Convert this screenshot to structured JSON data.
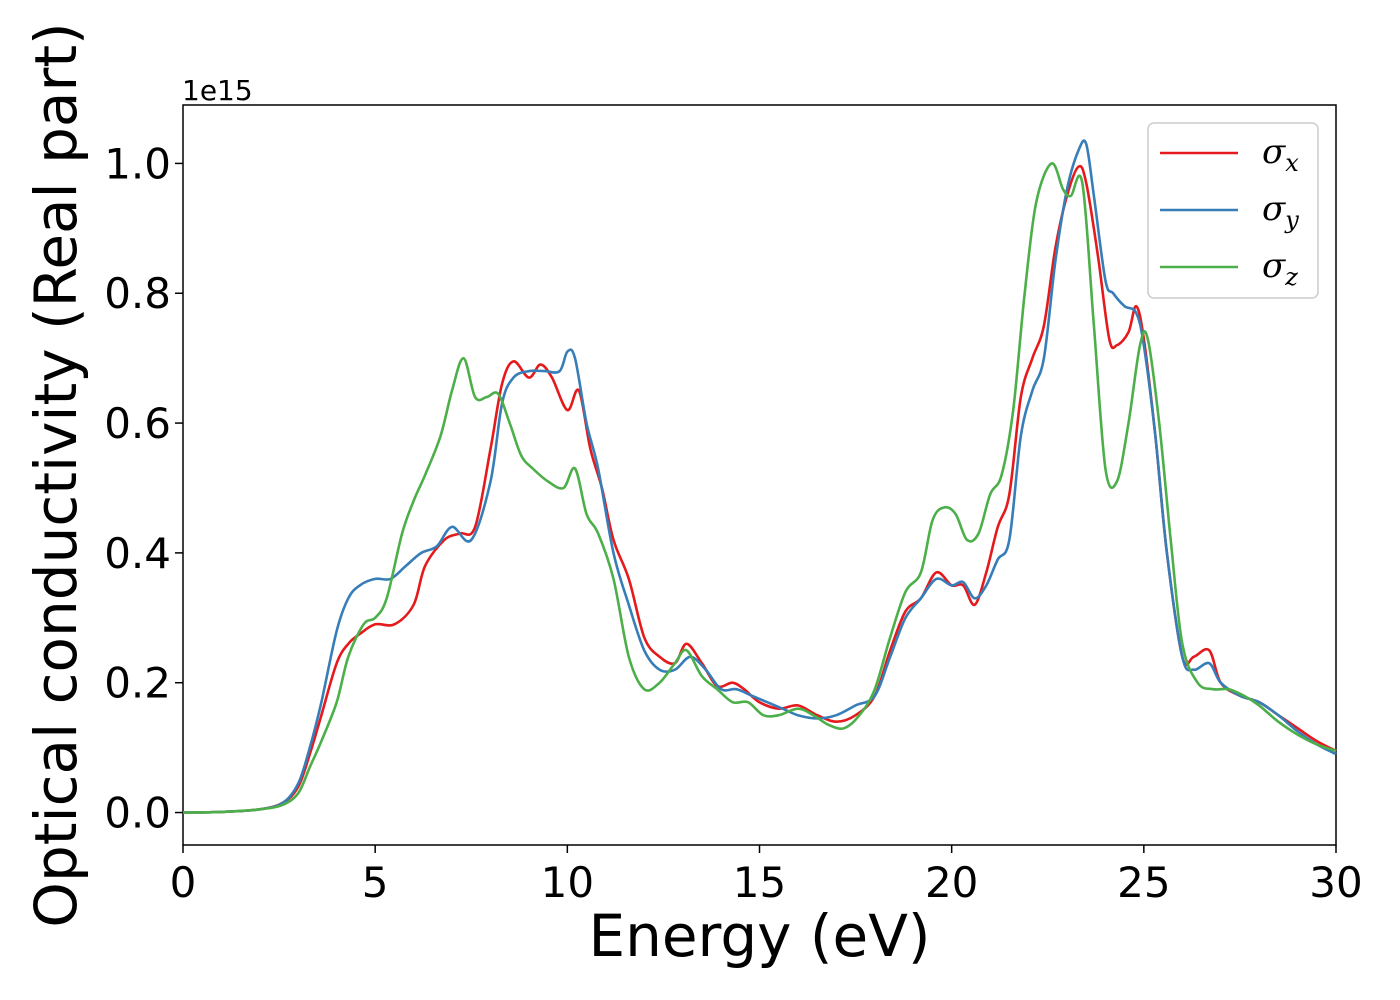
{
  "chart_data": {
    "type": "line",
    "xlabel": "Energy (eV)",
    "ylabel": "Optical conductivity (Real part)",
    "y_offset_text": "1e15",
    "xlim": [
      0,
      30
    ],
    "ylim": [
      -0.05,
      1.09
    ],
    "xticks": [
      0,
      5,
      10,
      15,
      20,
      25,
      30
    ],
    "xtick_labels": [
      "0",
      "5",
      "10",
      "15",
      "20",
      "25",
      "30"
    ],
    "yticks": [
      0.0,
      0.2,
      0.4,
      0.6,
      0.8,
      1.0
    ],
    "ytick_labels": [
      "0.0",
      "0.2",
      "0.4",
      "0.6",
      "0.8",
      "1.0"
    ],
    "grid": false,
    "legend_position": "top-right",
    "series": [
      {
        "name": "σx",
        "symbol": "σ",
        "subscript": "x",
        "color": "#e41a1c",
        "x": [
          0,
          1,
          2,
          2.6,
          3.0,
          3.3,
          3.6,
          4.0,
          4.3,
          4.6,
          5.0,
          5.5,
          6.0,
          6.3,
          6.8,
          7.2,
          7.6,
          8.0,
          8.3,
          8.6,
          9.0,
          9.3,
          9.6,
          10.0,
          10.3,
          10.6,
          10.9,
          11.2,
          11.6,
          12.0,
          12.4,
          12.8,
          13.1,
          13.5,
          13.9,
          14.3,
          14.6,
          15.0,
          15.5,
          16.0,
          16.5,
          17.0,
          17.5,
          18.0,
          18.4,
          18.8,
          19.2,
          19.6,
          20.0,
          20.3,
          20.6,
          20.9,
          21.2,
          21.5,
          21.8,
          22.1,
          22.4,
          22.7,
          23.0,
          23.3,
          23.5,
          23.8,
          24.1,
          24.3,
          24.6,
          24.8,
          25.0,
          25.3,
          25.6,
          26.0,
          26.3,
          26.7,
          27.0,
          27.5,
          28.0,
          28.5,
          29.0,
          29.5,
          30.0
        ],
        "y": [
          0,
          0.001,
          0.005,
          0.015,
          0.04,
          0.09,
          0.15,
          0.23,
          0.26,
          0.275,
          0.29,
          0.29,
          0.32,
          0.38,
          0.42,
          0.43,
          0.44,
          0.56,
          0.66,
          0.695,
          0.67,
          0.69,
          0.67,
          0.62,
          0.65,
          0.56,
          0.5,
          0.42,
          0.36,
          0.27,
          0.24,
          0.23,
          0.26,
          0.23,
          0.195,
          0.2,
          0.19,
          0.17,
          0.16,
          0.165,
          0.15,
          0.14,
          0.15,
          0.18,
          0.25,
          0.31,
          0.33,
          0.37,
          0.35,
          0.35,
          0.32,
          0.37,
          0.44,
          0.49,
          0.64,
          0.7,
          0.75,
          0.87,
          0.95,
          0.995,
          0.97,
          0.86,
          0.73,
          0.72,
          0.74,
          0.78,
          0.73,
          0.58,
          0.4,
          0.24,
          0.24,
          0.25,
          0.2,
          0.18,
          0.17,
          0.15,
          0.13,
          0.11,
          0.095
        ]
      },
      {
        "name": "σy",
        "symbol": "σ",
        "subscript": "y",
        "color": "#377eb8",
        "x": [
          0,
          1,
          2,
          2.6,
          3.0,
          3.3,
          3.6,
          4.0,
          4.3,
          4.6,
          5.0,
          5.4,
          5.8,
          6.2,
          6.6,
          7.0,
          7.5,
          8.0,
          8.3,
          8.6,
          9.0,
          9.4,
          9.8,
          10.0,
          10.2,
          10.5,
          10.8,
          11.2,
          11.6,
          12.0,
          12.4,
          12.8,
          13.2,
          13.6,
          14.0,
          14.4,
          14.8,
          15.2,
          15.6,
          16.0,
          16.5,
          17.0,
          17.5,
          18.0,
          18.4,
          18.8,
          19.2,
          19.6,
          20.0,
          20.3,
          20.6,
          20.9,
          21.2,
          21.5,
          21.8,
          22.1,
          22.4,
          22.7,
          23.0,
          23.3,
          23.5,
          23.7,
          24.0,
          24.2,
          24.5,
          24.8,
          25.0,
          25.3,
          25.6,
          26.0,
          26.3,
          26.7,
          27.0,
          27.5,
          28.0,
          28.5,
          29.0,
          29.5,
          30.0
        ],
        "y": [
          0,
          0.001,
          0.005,
          0.015,
          0.045,
          0.1,
          0.17,
          0.28,
          0.33,
          0.35,
          0.36,
          0.36,
          0.38,
          0.4,
          0.41,
          0.44,
          0.42,
          0.51,
          0.63,
          0.67,
          0.68,
          0.68,
          0.68,
          0.71,
          0.7,
          0.6,
          0.53,
          0.4,
          0.32,
          0.25,
          0.22,
          0.22,
          0.24,
          0.22,
          0.19,
          0.19,
          0.18,
          0.17,
          0.16,
          0.15,
          0.145,
          0.15,
          0.165,
          0.18,
          0.24,
          0.3,
          0.33,
          0.36,
          0.35,
          0.355,
          0.33,
          0.35,
          0.39,
          0.42,
          0.58,
          0.65,
          0.7,
          0.85,
          0.96,
          1.02,
          1.03,
          0.95,
          0.82,
          0.8,
          0.78,
          0.77,
          0.72,
          0.58,
          0.4,
          0.24,
          0.22,
          0.23,
          0.2,
          0.18,
          0.17,
          0.15,
          0.125,
          0.105,
          0.09
        ]
      },
      {
        "name": "σz",
        "symbol": "σ",
        "subscript": "z",
        "color": "#4daf4a",
        "x": [
          0,
          1,
          2,
          2.6,
          3.0,
          3.3,
          3.6,
          4.0,
          4.3,
          4.7,
          5.0,
          5.3,
          5.7,
          6.0,
          6.3,
          6.7,
          7.0,
          7.3,
          7.6,
          7.9,
          8.2,
          8.5,
          8.8,
          9.1,
          9.5,
          9.9,
          10.2,
          10.5,
          10.8,
          11.2,
          11.6,
          12.0,
          12.4,
          12.8,
          13.1,
          13.5,
          13.9,
          14.3,
          14.7,
          15.1,
          15.5,
          16.0,
          16.4,
          16.8,
          17.2,
          17.6,
          18.0,
          18.4,
          18.8,
          19.2,
          19.5,
          19.8,
          20.1,
          20.4,
          20.7,
          21.0,
          21.3,
          21.6,
          21.9,
          22.2,
          22.6,
          22.9,
          23.1,
          23.4,
          23.7,
          24.0,
          24.3,
          24.6,
          24.9,
          25.1,
          25.4,
          25.7,
          26.0,
          26.4,
          26.8,
          27.2,
          27.6,
          28.0,
          28.5,
          29.0,
          29.5,
          30.0
        ],
        "y": [
          0,
          0.001,
          0.005,
          0.012,
          0.03,
          0.07,
          0.11,
          0.17,
          0.24,
          0.29,
          0.3,
          0.33,
          0.43,
          0.48,
          0.52,
          0.58,
          0.65,
          0.7,
          0.64,
          0.64,
          0.645,
          0.6,
          0.55,
          0.53,
          0.51,
          0.5,
          0.53,
          0.46,
          0.43,
          0.36,
          0.24,
          0.19,
          0.2,
          0.23,
          0.25,
          0.21,
          0.19,
          0.17,
          0.17,
          0.15,
          0.15,
          0.16,
          0.15,
          0.135,
          0.13,
          0.15,
          0.19,
          0.27,
          0.34,
          0.37,
          0.45,
          0.47,
          0.46,
          0.42,
          0.43,
          0.49,
          0.52,
          0.62,
          0.8,
          0.94,
          1.0,
          0.96,
          0.95,
          0.97,
          0.75,
          0.53,
          0.51,
          0.6,
          0.72,
          0.73,
          0.6,
          0.42,
          0.26,
          0.2,
          0.19,
          0.19,
          0.18,
          0.165,
          0.14,
          0.12,
          0.105,
          0.095
        ]
      }
    ]
  }
}
